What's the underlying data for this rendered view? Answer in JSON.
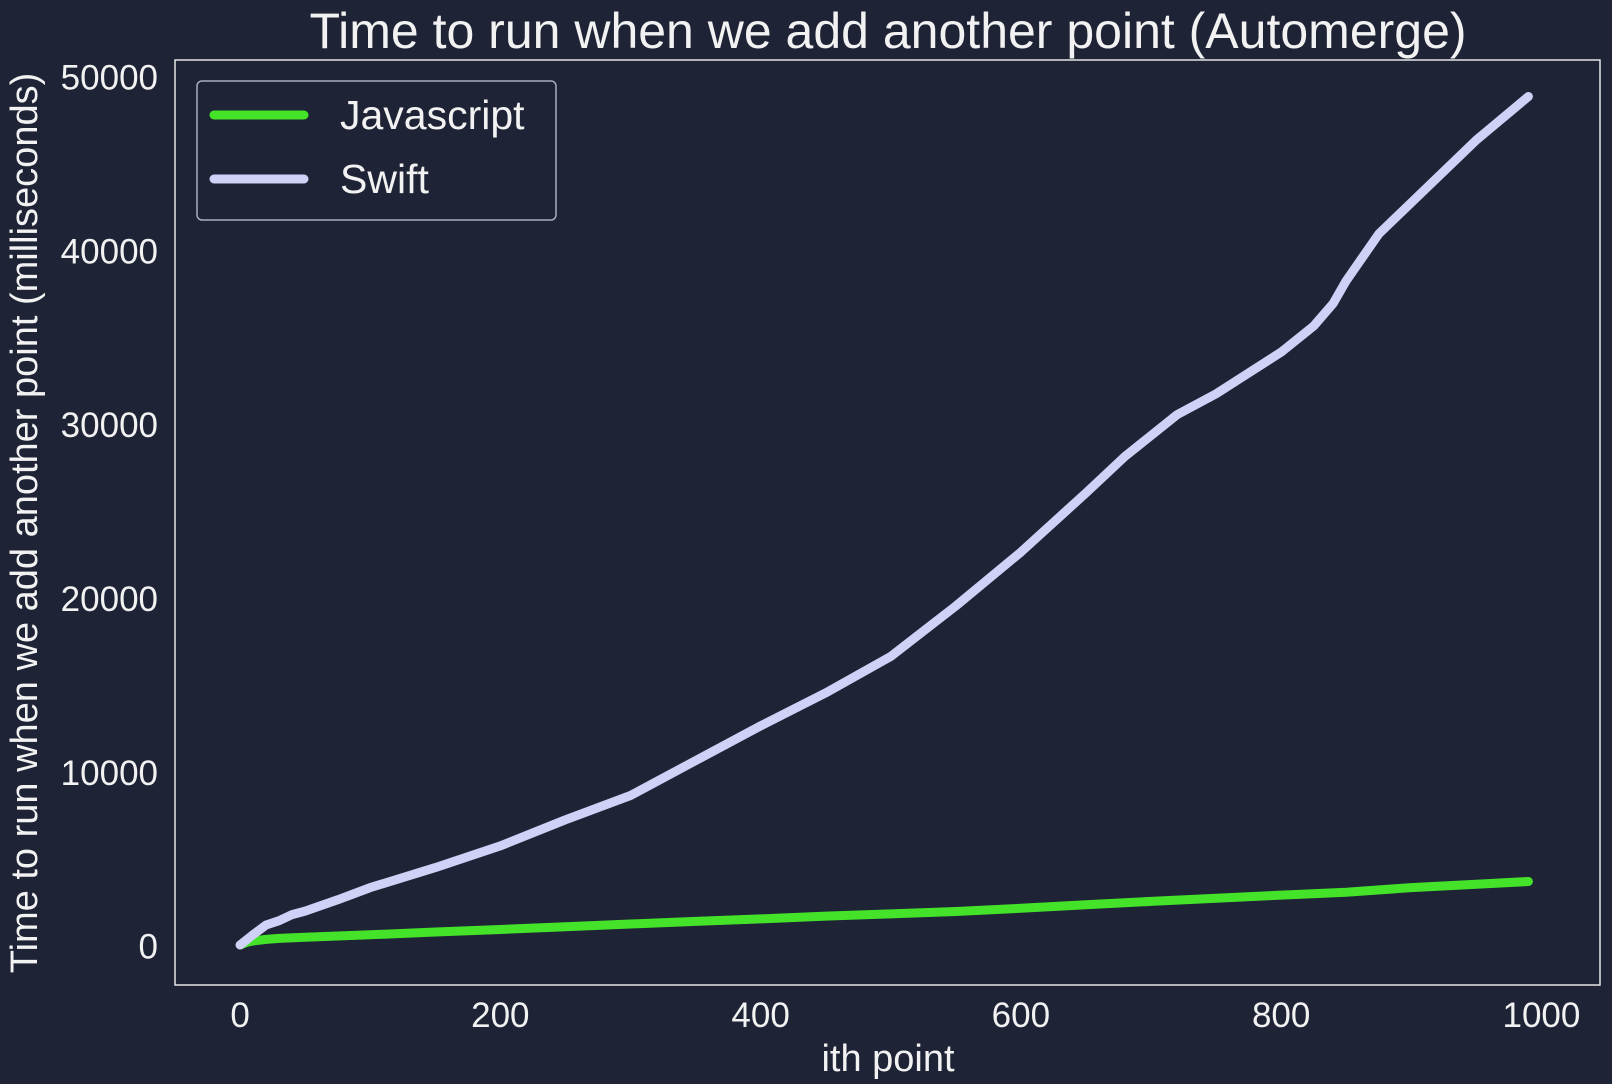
{
  "chart_data": {
    "type": "line",
    "title": "Time to run when we add another point (Automerge)",
    "xlabel": "ith point",
    "ylabel": "Time to run when we add another point (milliseconds)",
    "xlim": [
      -50,
      1045
    ],
    "ylim": [
      -2200,
      51000
    ],
    "xticks": [
      0,
      200,
      400,
      600,
      800,
      1000
    ],
    "yticks": [
      0,
      10000,
      20000,
      30000,
      40000,
      50000
    ],
    "grid": false,
    "legend_position": "top-left",
    "series": [
      {
        "name": "Javascript",
        "color": "#44e32a",
        "x": [
          0,
          5,
          10,
          20,
          30,
          50,
          100,
          150,
          200,
          250,
          300,
          350,
          400,
          450,
          500,
          550,
          600,
          650,
          700,
          750,
          800,
          850,
          900,
          950,
          990
        ],
        "y": [
          100,
          250,
          330,
          420,
          480,
          550,
          690,
          850,
          990,
          1150,
          1310,
          1460,
          1600,
          1760,
          1890,
          2030,
          2210,
          2410,
          2610,
          2790,
          2970,
          3130,
          3400,
          3590,
          3750
        ]
      },
      {
        "name": "Swift",
        "color": "#cfd1f7",
        "x": [
          0,
          10,
          20,
          30,
          40,
          50,
          75,
          100,
          150,
          200,
          250,
          300,
          350,
          400,
          450,
          500,
          550,
          600,
          650,
          680,
          720,
          750,
          800,
          825,
          840,
          850,
          875,
          900,
          950,
          990
        ],
        "y": [
          100,
          700,
          1250,
          1500,
          1850,
          2050,
          2700,
          3400,
          4550,
          5800,
          7300,
          8700,
          10700,
          12700,
          14600,
          16700,
          19600,
          22700,
          26100,
          28200,
          30600,
          31800,
          34200,
          35700,
          37000,
          38300,
          41000,
          42800,
          46400,
          48900
        ]
      }
    ]
  }
}
